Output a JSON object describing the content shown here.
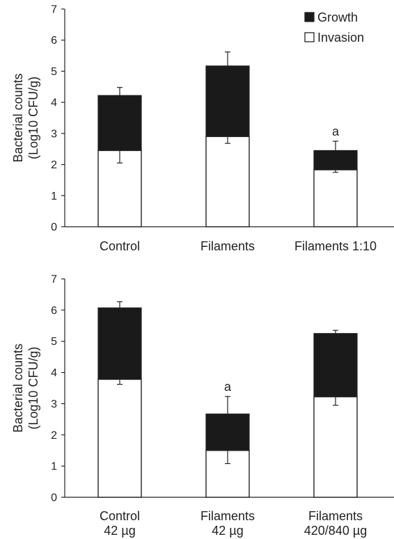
{
  "legend": [
    {
      "label": "Growth",
      "color": "#1a1a1a"
    },
    {
      "label": "Invasion",
      "color": "#ffffff"
    }
  ],
  "chart_data": [
    {
      "type": "bar",
      "stacked": true,
      "ylabel_lines": [
        "Bacterial counts",
        "(Log10 CFU/g)"
      ],
      "ylim": [
        0,
        7
      ],
      "yticks": [
        0,
        1,
        2,
        3,
        4,
        5,
        6,
        7
      ],
      "categories": [
        [
          "Control"
        ],
        [
          "Filaments"
        ],
        [
          "Filaments 1:10"
        ]
      ],
      "series": [
        {
          "name": "Invasion",
          "values": [
            2.45,
            2.9,
            1.83
          ]
        },
        {
          "name": "Growth",
          "values": [
            1.77,
            2.27,
            0.62
          ]
        }
      ],
      "totals": [
        4.22,
        5.17,
        2.45
      ],
      "error_total": [
        [
          4.22,
          4.48
        ],
        [
          5.17,
          5.62
        ],
        [
          2.45,
          2.75
        ]
      ],
      "error_invasion": [
        [
          2.05,
          2.45
        ],
        [
          2.68,
          2.9
        ],
        [
          1.75,
          1.83
        ]
      ],
      "annotations": [
        "",
        "",
        "a"
      ],
      "legend_position": "top-right",
      "grid": false
    },
    {
      "type": "bar",
      "stacked": true,
      "ylabel_lines": [
        "Bacterial counts",
        "(Log10 CFU/g)"
      ],
      "ylim": [
        0,
        7
      ],
      "yticks": [
        0,
        1,
        2,
        3,
        4,
        5,
        6,
        7
      ],
      "categories": [
        [
          "Control",
          "42 µg"
        ],
        [
          "Filaments",
          "42 µg"
        ],
        [
          "Filaments",
          "420/840 µg"
        ]
      ],
      "series": [
        {
          "name": "Invasion",
          "values": [
            3.78,
            1.5,
            3.22
          ]
        },
        {
          "name": "Growth",
          "values": [
            2.29,
            1.17,
            2.03
          ]
        }
      ],
      "totals": [
        6.07,
        2.67,
        5.25
      ],
      "error_total": [
        [
          6.07,
          6.27
        ],
        [
          2.67,
          3.23
        ],
        [
          5.25,
          5.35
        ]
      ],
      "error_invasion": [
        [
          3.62,
          3.78
        ],
        [
          1.08,
          1.5
        ],
        [
          2.95,
          3.22
        ]
      ],
      "annotations": [
        "",
        "a",
        ""
      ],
      "grid": false
    }
  ]
}
